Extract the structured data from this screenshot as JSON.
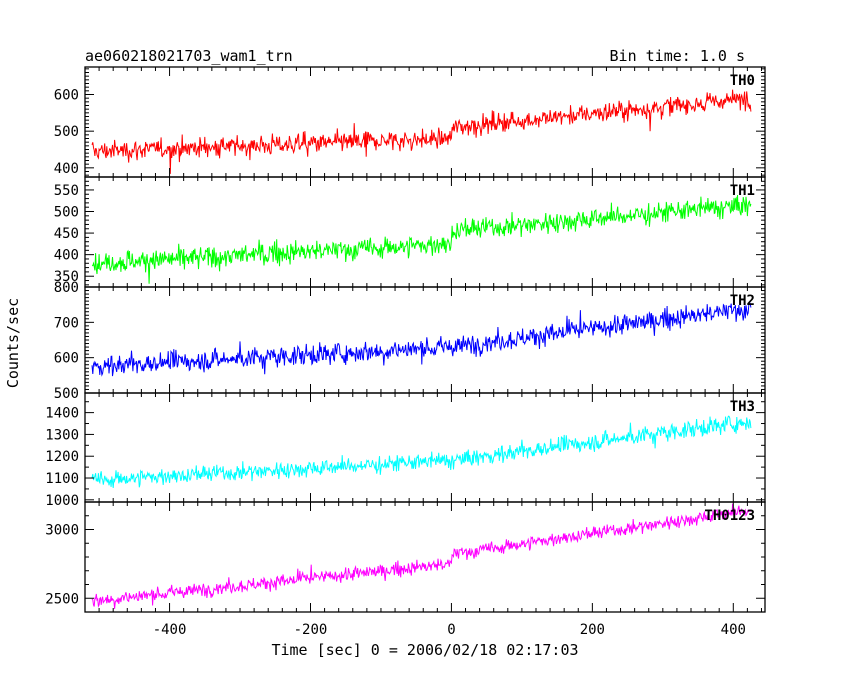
{
  "header": {
    "title": "ae060218021703_wam1_trn",
    "bin_time": "Bin time: 1.0 s"
  },
  "axes": {
    "xlabel": "Time [sec] 0 = 2006/02/18 02:17:03",
    "ylabel": "Counts/sec"
  },
  "chart_data": {
    "type": "line",
    "title": "ae060218021703_wam1_trn",
    "subtitle": "Bin time: 1.0 s",
    "xlabel": "Time [sec] 0 = 2006/02/18 02:17:03",
    "ylabel": "Counts/sec",
    "xlim": [
      -520,
      445
    ],
    "x_ticks": [
      -400,
      -200,
      0,
      200,
      400
    ],
    "x_range_data": [
      -510,
      425
    ],
    "grid": false,
    "panels": [
      {
        "name": "TH0",
        "color": "#ff0000",
        "ylim": [
          375,
          675
        ],
        "y_ticks": [
          400,
          500,
          600
        ],
        "trend": [
          {
            "x": -510,
            "y": 445
          },
          {
            "x": 0,
            "y": 480
          },
          {
            "x": 0,
            "y": 510
          },
          {
            "x": 425,
            "y": 590
          }
        ],
        "noise": 38
      },
      {
        "name": "TH1",
        "color": "#00ff00",
        "ylim": [
          325,
          580
        ],
        "y_ticks": [
          350,
          400,
          450,
          500,
          550
        ],
        "trend": [
          {
            "x": -510,
            "y": 380
          },
          {
            "x": 0,
            "y": 425
          },
          {
            "x": 0,
            "y": 455
          },
          {
            "x": 425,
            "y": 515
          }
        ],
        "noise": 35
      },
      {
        "name": "TH2",
        "color": "#0000ff",
        "ylim": [
          500,
          800
        ],
        "y_ticks": [
          500,
          600,
          700,
          800
        ],
        "trend": [
          {
            "x": -510,
            "y": 575
          },
          {
            "x": 0,
            "y": 630
          },
          {
            "x": 425,
            "y": 740
          }
        ],
        "noise": 40
      },
      {
        "name": "TH3",
        "color": "#00ffff",
        "ylim": [
          990,
          1490
        ],
        "y_ticks": [
          1000,
          1100,
          1200,
          1300,
          1400
        ],
        "trend": [
          {
            "x": -510,
            "y": 1090
          },
          {
            "x": 0,
            "y": 1180
          },
          {
            "x": 425,
            "y": 1360
          }
        ],
        "noise": 55
      },
      {
        "name": "TH0123",
        "color": "#ff00ff",
        "ylim": [
          2400,
          3200
        ],
        "y_ticks": [
          2500,
          3000
        ],
        "trend": [
          {
            "x": -510,
            "y": 2480
          },
          {
            "x": 0,
            "y": 2750
          },
          {
            "x": 0,
            "y": 2820
          },
          {
            "x": 425,
            "y": 3140
          }
        ],
        "noise": 70
      }
    ]
  }
}
